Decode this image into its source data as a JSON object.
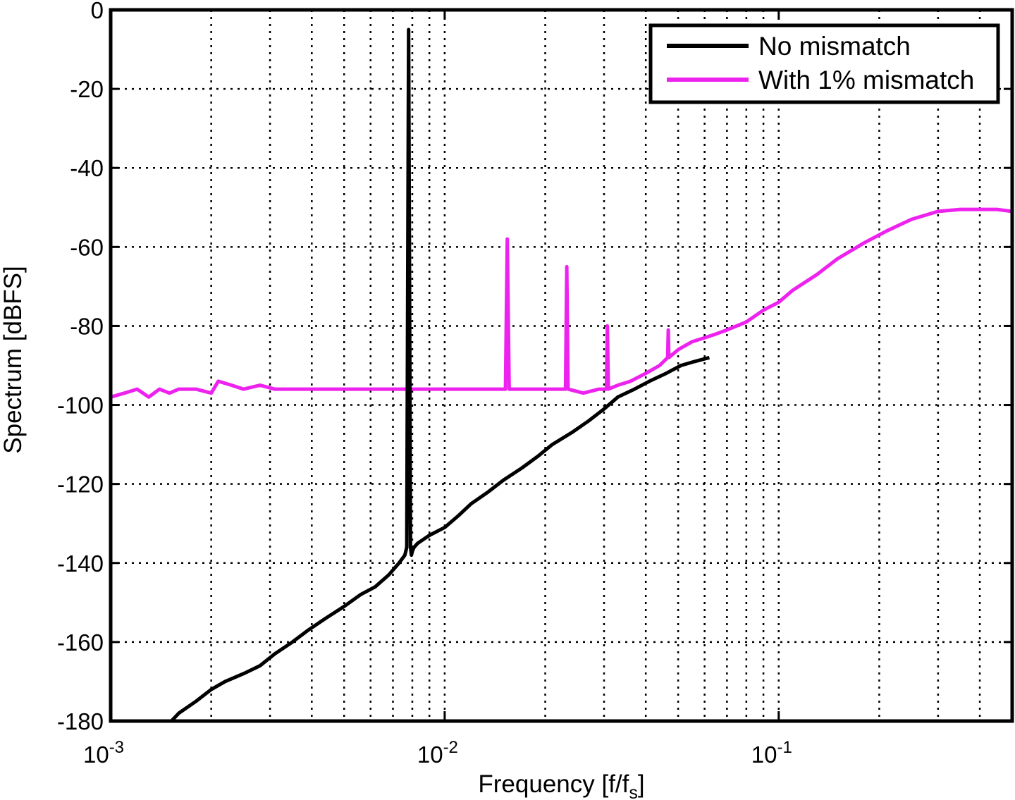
{
  "chart_data": {
    "type": "line",
    "title": "",
    "xlabel": "Frequency [f/f",
    "xlabel_sub": "s",
    "xlabel_end": "]",
    "ylabel": "Spectrum [dBFS]",
    "x_scale": "log",
    "xlim": [
      0.001,
      0.5
    ],
    "ylim": [
      -180,
      0
    ],
    "x_ticks": [
      {
        "value": 0.001,
        "base": "10",
        "exp": "-3"
      },
      {
        "value": 0.01,
        "base": "10",
        "exp": "-2"
      },
      {
        "value": 0.1,
        "base": "10",
        "exp": "-1"
      }
    ],
    "y_ticks": [
      0,
      -20,
      -40,
      -60,
      -80,
      -100,
      -120,
      -140,
      -160,
      -180
    ],
    "y_tick_labels": [
      "0",
      "-20",
      "-40",
      "-60",
      "-80",
      "-100",
      "-120",
      "-140",
      "-160",
      "-180"
    ],
    "grid": true,
    "legend_position": "top-right",
    "series": [
      {
        "name": "No mismatch",
        "color": "#000000",
        "x": [
          0.00152,
          0.0016,
          0.0018,
          0.002,
          0.0022,
          0.0025,
          0.0028,
          0.0031,
          0.0035,
          0.0039,
          0.0044,
          0.005,
          0.0056,
          0.0062,
          0.0068,
          0.0073,
          0.0076,
          0.0077,
          0.0078,
          0.0079,
          0.00795,
          0.008,
          0.0081,
          0.0083,
          0.009,
          0.01,
          0.011,
          0.012,
          0.0135,
          0.015,
          0.017,
          0.019,
          0.021,
          0.024,
          0.027,
          0.03,
          0.033,
          0.037,
          0.041,
          0.046,
          0.051,
          0.056,
          0.062
        ],
        "y": [
          -180,
          -178,
          -175,
          -172,
          -170,
          -168,
          -166,
          -163,
          -160,
          -157,
          -154,
          -151,
          -148,
          -146,
          -143,
          -140,
          -138,
          -136,
          -5,
          -136,
          -138,
          -137,
          -136,
          -135,
          -133,
          -131,
          -128,
          -125,
          -122,
          -119,
          -116,
          -113,
          -110,
          -107,
          -104,
          -101,
          -98,
          -96,
          -94,
          -92,
          -90,
          -89,
          -88
        ]
      },
      {
        "name": "With 1% mismatch",
        "color": "#ee22ee",
        "x": [
          0.001,
          0.0011,
          0.0012,
          0.0013,
          0.0014,
          0.0015,
          0.0016,
          0.0018,
          0.002,
          0.0021,
          0.0023,
          0.0025,
          0.0028,
          0.0031,
          0.0035,
          0.004,
          0.0045,
          0.005,
          0.0056,
          0.0063,
          0.007,
          0.0078,
          0.0087,
          0.0097,
          0.011,
          0.012,
          0.0135,
          0.0152,
          0.0154,
          0.0156,
          0.017,
          0.019,
          0.0215,
          0.023,
          0.0232,
          0.0234,
          0.026,
          0.029,
          0.0305,
          0.0307,
          0.0309,
          0.033,
          0.036,
          0.04,
          0.044,
          0.0465,
          0.0467,
          0.0469,
          0.05,
          0.055,
          0.06,
          0.065,
          0.07,
          0.08,
          0.09,
          0.1,
          0.11,
          0.13,
          0.15,
          0.18,
          0.21,
          0.25,
          0.3,
          0.35,
          0.4,
          0.45,
          0.5
        ],
        "y": [
          -98,
          -97,
          -96,
          -98,
          -96,
          -97,
          -96,
          -96,
          -97,
          -94,
          -95,
          -96,
          -95,
          -96,
          -96,
          -96,
          -96,
          -96,
          -96,
          -96,
          -96,
          -96,
          -96,
          -96,
          -96,
          -96,
          -96,
          -96,
          -58,
          -96,
          -96,
          -96,
          -96,
          -96,
          -65,
          -96,
          -97,
          -96,
          -96,
          -80,
          -96,
          -95,
          -94,
          -92,
          -90,
          -88,
          -81,
          -88,
          -86,
          -84,
          -83,
          -82,
          -81,
          -79,
          -76,
          -74,
          -71,
          -67,
          -63,
          -59,
          -56,
          -53,
          -51,
          -50.5,
          -50.5,
          -50.5,
          -51
        ]
      }
    ]
  }
}
